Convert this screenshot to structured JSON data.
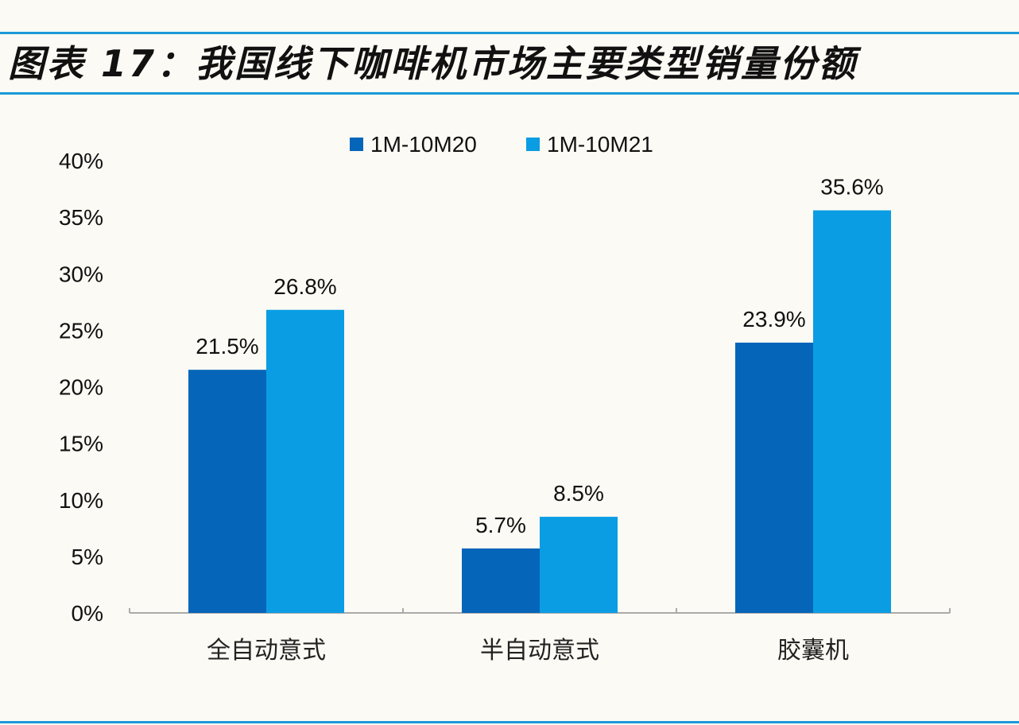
{
  "title": "图表 17：我国线下咖啡机市场主要类型销量份额",
  "colors": {
    "series1": "#0565b9",
    "series2": "#0a9de4",
    "rule": "#1b9ad8"
  },
  "chart_data": {
    "type": "bar",
    "title": "图表 17：我国线下咖啡机市场主要类型销量份额",
    "categories": [
      "全自动意式",
      "半自动意式",
      "胶囊机"
    ],
    "series": [
      {
        "name": "1M-10M20",
        "values": [
          21.5,
          5.7,
          23.9
        ],
        "labels": [
          "21.5%",
          "5.7%",
          "23.9%"
        ]
      },
      {
        "name": "1M-10M21",
        "values": [
          26.8,
          8.5,
          35.6
        ],
        "labels": [
          "26.8%",
          "8.5%",
          "35.6%"
        ]
      }
    ],
    "ylim": [
      0,
      40
    ],
    "yticks": [
      "0%",
      "5%",
      "10%",
      "15%",
      "20%",
      "25%",
      "30%",
      "35%",
      "40%"
    ],
    "xlabel": "",
    "ylabel": "",
    "grid": false,
    "legend": "top-center"
  }
}
